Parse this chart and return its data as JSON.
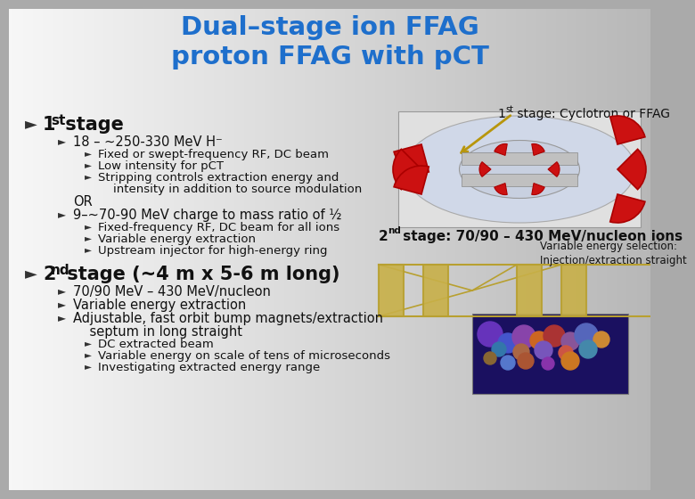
{
  "title_line1": "Dual–stage ion FFAG",
  "title_line2": "proton FFAG with pCT",
  "title_color": "#1e6fcc",
  "annotation_1st": "1st stage: Cyclotron or FFAG",
  "annotation_2nd": "2nd stage: 70/90 – 430 MeV/nucleon ions",
  "annotation_var": "Variable energy selection:\nInjection/extraction straight",
  "content": [
    {
      "level": 0,
      "text": "1st stage",
      "bold": true,
      "size": 14
    },
    {
      "level": 1,
      "text": "18 – ~250-330 MeV H⁻",
      "bold": false,
      "size": 10.5
    },
    {
      "level": 2,
      "text": "Fixed or swept-frequency RF, DC beam",
      "bold": false,
      "size": 9.5
    },
    {
      "level": 2,
      "text": "Low intensity for pCT",
      "bold": false,
      "size": 9.5
    },
    {
      "level": 2,
      "text": "Stripping controls extraction energy and",
      "bold": false,
      "size": 9.5
    },
    {
      "level": 2,
      "text": "    intensity in addition to source modulation",
      "bold": false,
      "size": 9.5,
      "no_bullet": true
    },
    {
      "level": 1,
      "text": "OR",
      "bold": false,
      "size": 10.5,
      "no_bullet": true
    },
    {
      "level": 1,
      "text": "9–~70-90 MeV charge to mass ratio of ½",
      "bold": false,
      "size": 10.5
    },
    {
      "level": 2,
      "text": "Fixed-frequency RF, DC beam for all ions",
      "bold": false,
      "size": 9.5
    },
    {
      "level": 2,
      "text": "Variable energy extraction",
      "bold": false,
      "size": 9.5
    },
    {
      "level": 2,
      "text": "Upstream injector for high-energy ring",
      "bold": false,
      "size": 9.5
    },
    {
      "level": 0,
      "text": "2nd stage (~4 m x 5-6 m long)",
      "bold": true,
      "size": 14
    },
    {
      "level": 1,
      "text": "70/90 MeV – 430 MeV/nucleon",
      "bold": false,
      "size": 10.5
    },
    {
      "level": 1,
      "text": "Variable energy extraction",
      "bold": false,
      "size": 10.5
    },
    {
      "level": 1,
      "text": "Adjustable, fast orbit bump magnets/extraction",
      "bold": false,
      "size": 10.5
    },
    {
      "level": 1,
      "text": "    septum in long straight",
      "bold": false,
      "size": 10.5,
      "no_bullet": true
    },
    {
      "level": 2,
      "text": "DC extracted beam",
      "bold": false,
      "size": 9.5
    },
    {
      "level": 2,
      "text": "Variable energy on scale of tens of microseconds",
      "bold": false,
      "size": 9.5
    },
    {
      "level": 2,
      "text": "Investigating extracted energy range",
      "bold": false,
      "size": 9.5
    }
  ]
}
